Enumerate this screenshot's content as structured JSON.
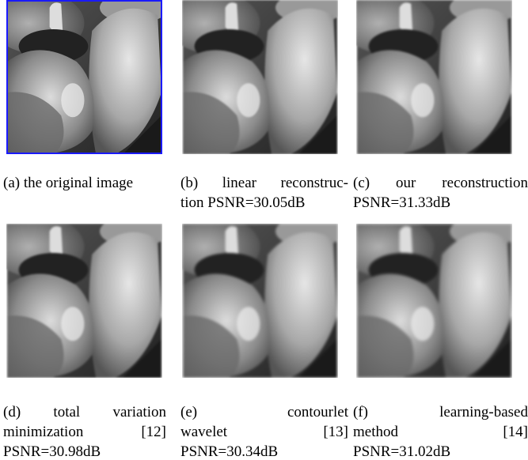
{
  "panels": [
    {
      "lines": [
        "(a) the original image"
      ]
    },
    {
      "lines": [
        "(b) linear reconstruc-",
        "tion PSNR=30.05dB"
      ]
    },
    {
      "lines": [
        "(c) our reconstruction",
        "PSNR=31.33dB"
      ]
    },
    {
      "lines": [
        "(d) total variation",
        "minimization [12]",
        "PSNR=30.98dB"
      ]
    },
    {
      "lines": [
        "(e) contourlet",
        "wavelet [13]",
        "PSNR=30.34dB"
      ]
    },
    {
      "lines": [
        "(f) learning-based",
        "method [14]",
        "PSNR=31.02dB"
      ]
    }
  ]
}
